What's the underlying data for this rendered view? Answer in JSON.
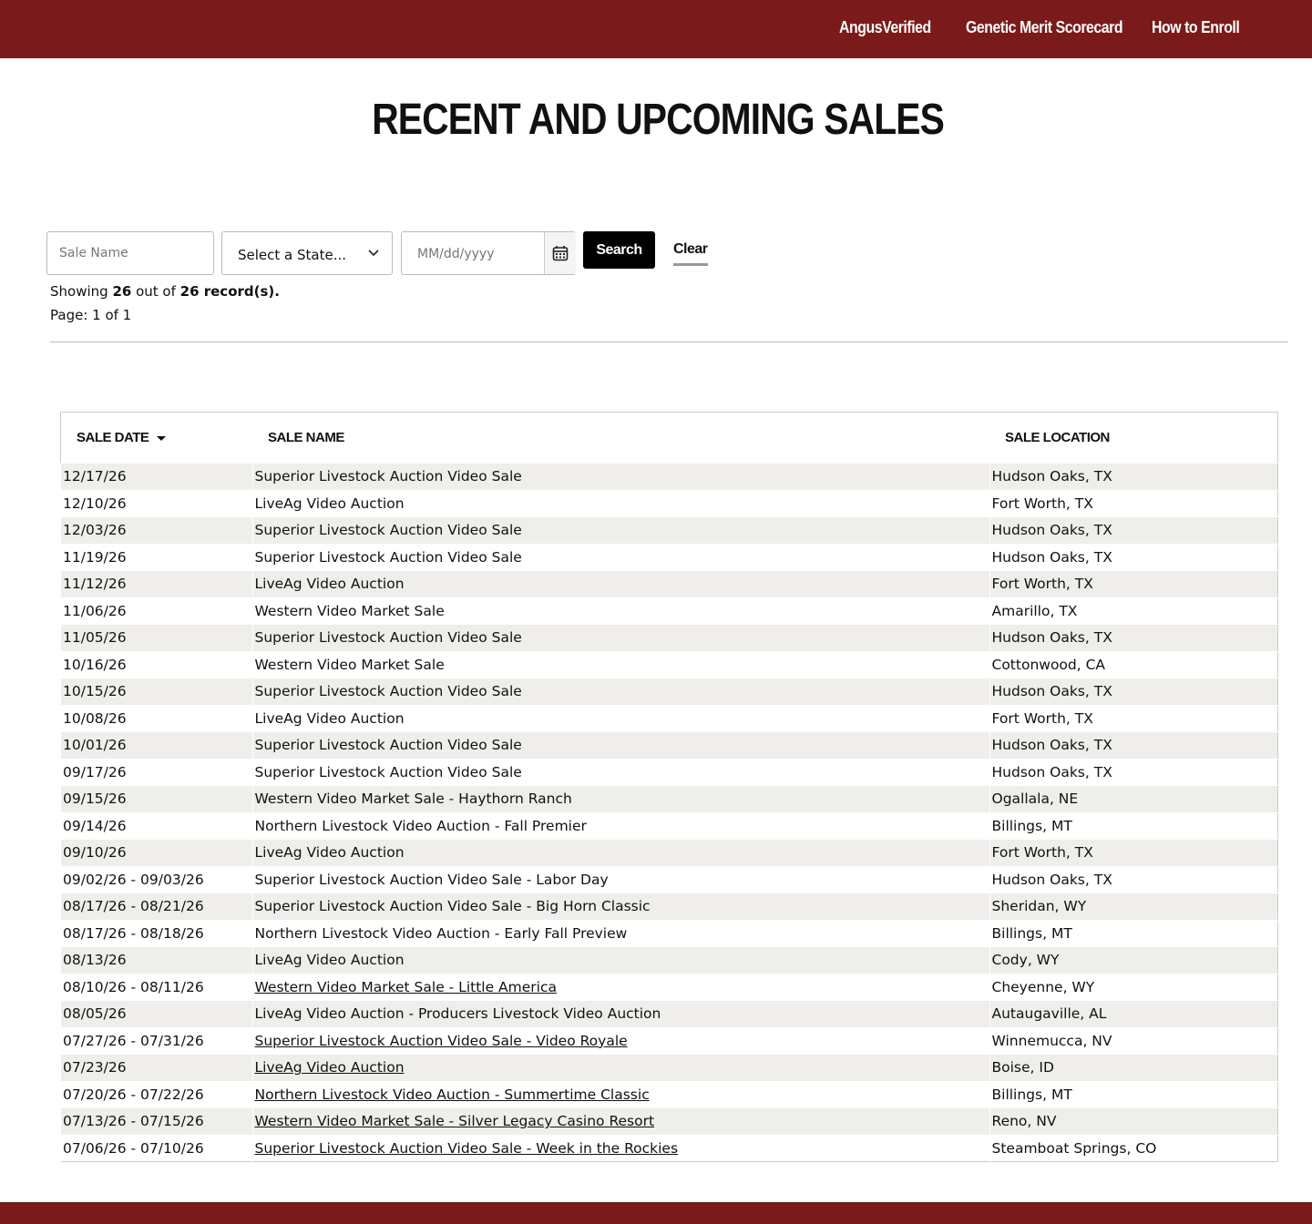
{
  "nav": {
    "links": [
      "AngusVerified",
      "Genetic Merit Scorecard",
      "How to Enroll"
    ]
  },
  "header": {
    "title": "RECENT AND UPCOMING SALES"
  },
  "form": {
    "sale_name_placeholder": "Sale Name",
    "state_select": "Select a State...",
    "date_placeholder": "MM/dd/yyyy",
    "search_button": "Search",
    "clear_button": "Clear"
  },
  "summary": {
    "showing": [
      "Showing ",
      "26",
      " out of ",
      "26",
      " record(s)."
    ],
    "page": "Page: 1 of 1"
  },
  "table": {
    "columns": [
      "SALE DATE",
      "SALE NAME",
      "SALE LOCATION"
    ],
    "rows": [
      {
        "date": "12/17/26",
        "name": "Superior Livestock Auction Video Sale",
        "location": "Hudson Oaks, TX",
        "link": false
      },
      {
        "date": "12/10/26",
        "name": "LiveAg Video Auction",
        "location": "Fort Worth, TX",
        "link": false
      },
      {
        "date": "12/03/26",
        "name": "Superior Livestock Auction Video Sale",
        "location": "Hudson Oaks, TX",
        "link": false
      },
      {
        "date": "11/19/26",
        "name": "Superior Livestock Auction Video Sale",
        "location": "Hudson Oaks, TX",
        "link": false
      },
      {
        "date": "11/12/26",
        "name": "LiveAg Video Auction",
        "location": "Fort Worth, TX",
        "link": false
      },
      {
        "date": "11/06/26",
        "name": "Western Video Market Sale",
        "location": "Amarillo, TX",
        "link": false
      },
      {
        "date": "11/05/26",
        "name": "Superior Livestock Auction Video Sale",
        "location": "Hudson Oaks, TX",
        "link": false
      },
      {
        "date": "10/16/26",
        "name": "Western Video Market Sale",
        "location": "Cottonwood, CA",
        "link": false
      },
      {
        "date": "10/15/26",
        "name": "Superior Livestock Auction Video Sale",
        "location": "Hudson Oaks, TX",
        "link": false
      },
      {
        "date": "10/08/26",
        "name": "LiveAg Video Auction",
        "location": "Fort Worth, TX",
        "link": false
      },
      {
        "date": "10/01/26",
        "name": "Superior Livestock Auction Video Sale",
        "location": "Hudson Oaks, TX",
        "link": false
      },
      {
        "date": "09/17/26",
        "name": "Superior Livestock Auction Video Sale",
        "location": "Hudson Oaks, TX",
        "link": false
      },
      {
        "date": "09/15/26",
        "name": "Western Video Market Sale - Haythorn Ranch",
        "location": "Ogallala, NE",
        "link": false
      },
      {
        "date": "09/14/26",
        "name": "Northern Livestock Video Auction - Fall Premier",
        "location": "Billings, MT",
        "link": false
      },
      {
        "date": "09/10/26",
        "name": "LiveAg Video Auction",
        "location": "Fort Worth, TX",
        "link": false
      },
      {
        "date": "09/02/26 - 09/03/26",
        "name": "Superior Livestock Auction Video Sale - Labor Day",
        "location": "Hudson Oaks, TX",
        "link": false
      },
      {
        "date": "08/17/26 - 08/21/26",
        "name": "Superior Livestock Auction Video Sale - Big Horn Classic",
        "location": "Sheridan, WY",
        "link": false
      },
      {
        "date": "08/17/26 - 08/18/26",
        "name": "Northern Livestock Video Auction - Early Fall Preview",
        "location": "Billings, MT",
        "link": false
      },
      {
        "date": "08/13/26",
        "name": "LiveAg Video Auction",
        "location": "Cody, WY",
        "link": false
      },
      {
        "date": "08/10/26 - 08/11/26",
        "name": "Western Video Market Sale - Little America",
        "location": "Cheyenne, WY",
        "link": true
      },
      {
        "date": "08/05/26",
        "name": "LiveAg Video Auction - Producers Livestock Video Auction",
        "location": "Autaugaville, AL",
        "link": false
      },
      {
        "date": "07/27/26 - 07/31/26",
        "name": "Superior Livestock Auction Video Sale - Video Royale",
        "location": "Winnemucca, NV",
        "link": true
      },
      {
        "date": "07/23/26",
        "name": "LiveAg Video Auction",
        "location": "Boise, ID",
        "link": true
      },
      {
        "date": "07/20/26 - 07/22/26",
        "name": "Northern Livestock Video Auction - Summertime Classic",
        "location": "Billings, MT",
        "link": true
      },
      {
        "date": "07/13/26 - 07/15/26",
        "name": "Western Video Market Sale - Silver Legacy Casino Resort",
        "location": "Reno, NV",
        "link": true
      },
      {
        "date": "07/06/26 - 07/10/26",
        "name": "Superior Livestock Auction Video Sale - Week in the Rockies",
        "location": "Steamboat Springs, CO",
        "link": true
      }
    ]
  }
}
